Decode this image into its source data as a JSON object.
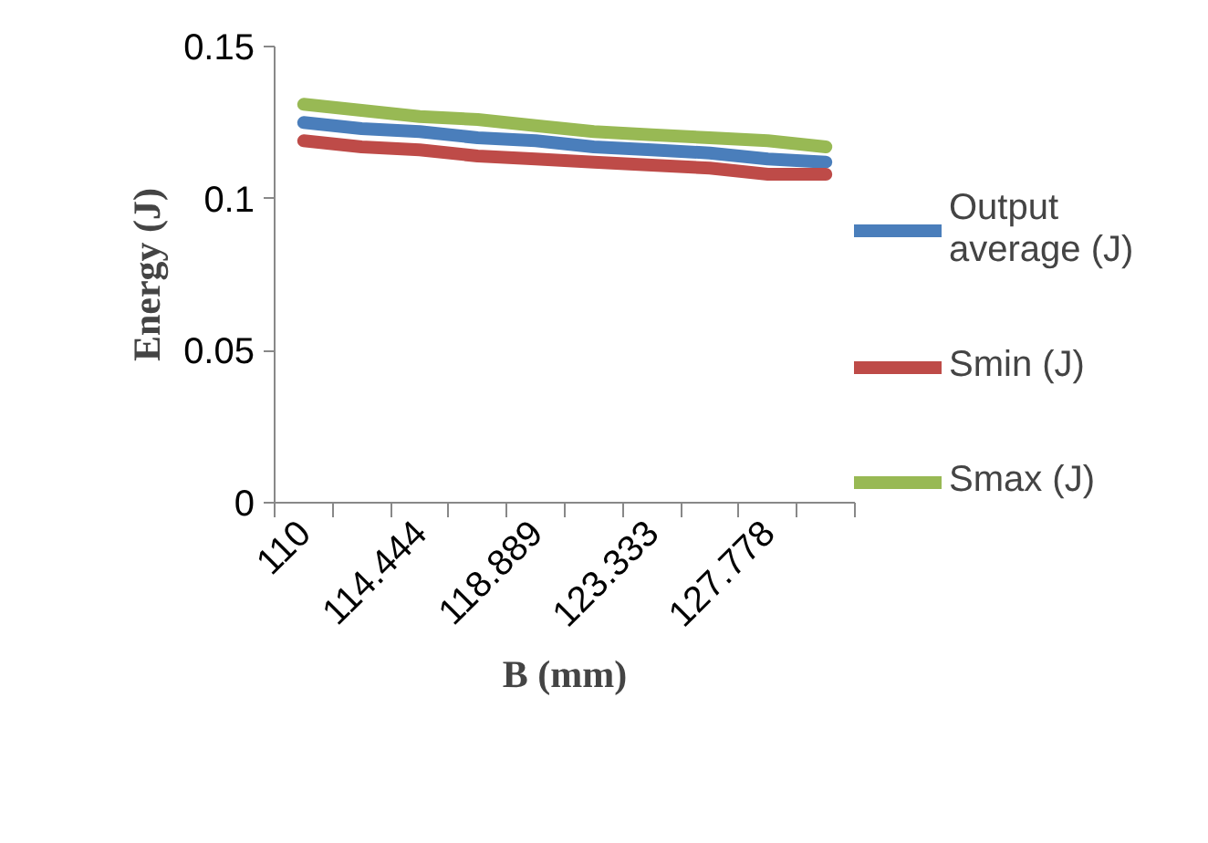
{
  "chart_data": {
    "type": "line",
    "xlabel": "B (mm)",
    "ylabel": "Energy (J)",
    "categories": [
      "110",
      null,
      "114.444",
      null,
      "118.889",
      null,
      "123.333",
      null,
      "127.778",
      null
    ],
    "series": [
      {
        "name": "Output average (J)",
        "color": "#4a7ebb",
        "values": [
          0.125,
          0.123,
          0.122,
          0.12,
          0.119,
          0.117,
          0.116,
          0.115,
          0.113,
          0.112
        ]
      },
      {
        "name": "Smin (J)",
        "color": "#be4b48",
        "values": [
          0.119,
          0.117,
          0.116,
          0.114,
          0.113,
          0.112,
          0.111,
          0.11,
          0.108,
          0.108
        ]
      },
      {
        "name": "Smax (J)",
        "color": "#98b954",
        "values": [
          0.131,
          0.129,
          0.127,
          0.126,
          0.124,
          0.122,
          0.121,
          0.12,
          0.119,
          0.117
        ]
      }
    ],
    "ylim": [
      0,
      0.15
    ],
    "yticks": [
      0,
      0.05,
      0.1,
      0.15
    ],
    "grid": false,
    "legend": "right"
  }
}
